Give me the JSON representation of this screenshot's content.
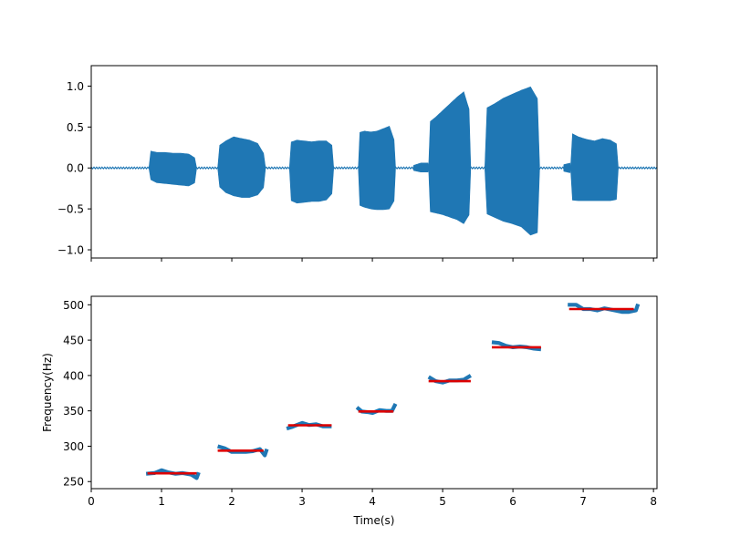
{
  "chart_data": [
    {
      "type": "area",
      "title": "",
      "xlabel": "",
      "ylabel": "",
      "xlim": [
        0,
        8.05
      ],
      "ylim": [
        -1.1,
        1.25
      ],
      "x_ticks": [
        0,
        1,
        2,
        3,
        4,
        5,
        6,
        7,
        8
      ],
      "y_ticks": [
        -1.0,
        -0.5,
        0.0,
        0.5,
        1.0
      ],
      "y_tick_labels": [
        "−1.0",
        "−0.5",
        "0.0",
        "0.5",
        "1.0"
      ],
      "x_tick_labels_visible": false,
      "series": [
        {
          "color": "#1f77b4",
          "noise_amplitude": 0.01,
          "segments": [
            {
              "t_start": 0.82,
              "t_end": 1.5,
              "upper_envelope": [
                0.21,
                0.19,
                0.19,
                0.18,
                0.18,
                0.17,
                0.11
              ],
              "lower_envelope": [
                -0.13,
                -0.18,
                -0.19,
                -0.2,
                -0.21,
                -0.22,
                -0.17
              ]
            },
            {
              "t_start": 1.8,
              "t_end": 2.48,
              "upper_envelope": [
                0.26,
                0.33,
                0.38,
                0.36,
                0.34,
                0.3,
                0.14
              ],
              "lower_envelope": [
                -0.21,
                -0.3,
                -0.34,
                -0.36,
                -0.36,
                -0.33,
                -0.21
              ]
            },
            {
              "t_start": 2.82,
              "t_end": 3.45,
              "upper_envelope": [
                0.31,
                0.34,
                0.33,
                0.32,
                0.33,
                0.33,
                0.26
              ],
              "lower_envelope": [
                -0.39,
                -0.43,
                -0.42,
                -0.41,
                -0.41,
                -0.39,
                -0.29
              ]
            },
            {
              "t_start": 3.8,
              "t_end": 4.33,
              "upper_envelope": [
                0.43,
                0.45,
                0.44,
                0.45,
                0.48,
                0.51,
                0.29
              ],
              "lower_envelope": [
                -0.45,
                -0.48,
                -0.5,
                -0.51,
                -0.51,
                -0.5,
                -0.37
              ]
            },
            {
              "t_start": 4.58,
              "t_end": 4.8,
              "upper_envelope": [
                0.03,
                0.06,
                0.06
              ],
              "lower_envelope": [
                -0.03,
                -0.05,
                -0.05
              ]
            },
            {
              "t_start": 4.8,
              "t_end": 5.4,
              "upper_envelope": [
                0.55,
                0.62,
                0.7,
                0.78,
                0.86,
                0.93,
                0.65
              ],
              "lower_envelope": [
                -0.53,
                -0.55,
                -0.57,
                -0.6,
                -0.63,
                -0.68,
                -0.54
              ]
            },
            {
              "t_start": 5.6,
              "t_end": 6.38,
              "upper_envelope": [
                0.72,
                0.78,
                0.85,
                0.9,
                0.95,
                0.99,
                0.8
              ],
              "lower_envelope": [
                -0.55,
                -0.6,
                -0.65,
                -0.68,
                -0.72,
                -0.82,
                -0.78
              ]
            },
            {
              "t_start": 6.72,
              "t_end": 6.82,
              "upper_envelope": [
                0.04,
                0.06
              ],
              "lower_envelope": [
                -0.04,
                -0.06
              ]
            },
            {
              "t_start": 6.82,
              "t_end": 7.5,
              "upper_envelope": [
                0.43,
                0.38,
                0.35,
                0.33,
                0.36,
                0.34,
                0.28
              ],
              "lower_envelope": [
                -0.39,
                -0.4,
                -0.4,
                -0.4,
                -0.4,
                -0.4,
                -0.38
              ]
            }
          ]
        }
      ]
    },
    {
      "type": "line",
      "title": "",
      "xlabel": "Time(s)",
      "ylabel": "Frequency(Hz)",
      "xlim": [
        0,
        8.05
      ],
      "ylim": [
        240,
        512
      ],
      "x_ticks": [
        0,
        1,
        2,
        3,
        4,
        5,
        6,
        7,
        8
      ],
      "x_tick_labels": [
        "0",
        "1",
        "2",
        "3",
        "4",
        "5",
        "6",
        "7",
        "8"
      ],
      "y_ticks": [
        250,
        300,
        350,
        400,
        450,
        500
      ],
      "y_tick_labels": [
        "250",
        "300",
        "350",
        "400",
        "450",
        "500"
      ],
      "series": [
        {
          "role": "pitch",
          "color": "#1f77b4",
          "segments": [
            {
              "t": [
                0.78,
                0.9,
                1.0,
                1.1,
                1.2,
                1.3,
                1.42,
                1.5,
                1.53
              ],
              "f": [
                261,
                262,
                266,
                263,
                261,
                262,
                260,
                255,
                263
              ]
            },
            {
              "t": [
                1.8,
                1.9,
                2.0,
                2.1,
                2.2,
                2.3,
                2.4,
                2.47,
                2.5
              ],
              "f": [
                300,
                297,
                292,
                292,
                292,
                293,
                296,
                287,
                296
              ]
            },
            {
              "t": [
                2.78,
                2.85,
                2.95,
                3.0,
                3.1,
                3.2,
                3.3,
                3.42
              ],
              "f": [
                325,
                327,
                331,
                333,
                330,
                331,
                328,
                328
              ]
            },
            {
              "t": [
                3.78,
                3.85,
                3.95,
                4.0,
                4.1,
                4.2,
                4.28,
                4.33
              ],
              "f": [
                355,
                349,
                348,
                347,
                351,
                350,
                350,
                360
              ]
            },
            {
              "t": [
                4.8,
                4.9,
                5.0,
                5.1,
                5.2,
                5.3,
                5.4
              ],
              "f": [
                398,
                392,
                390,
                393,
                393,
                394,
                400
              ]
            },
            {
              "t": [
                5.7,
                5.8,
                5.9,
                6.0,
                6.1,
                6.2,
                6.3,
                6.4
              ],
              "f": [
                447,
                446,
                442,
                440,
                441,
                440,
                438,
                437
              ]
            },
            {
              "t": [
                6.78,
                6.9,
                7.0,
                7.1,
                7.2,
                7.3,
                7.4,
                7.55,
                7.65,
                7.75,
                7.78
              ],
              "f": [
                500,
                500,
                494,
                494,
                492,
                495,
                493,
                490,
                490,
                492,
                501
              ]
            }
          ]
        },
        {
          "role": "note-frequency",
          "color": "#dd0000",
          "segments": [
            {
              "t": [
                0.8,
                1.5
              ],
              "f": [
                261.6,
                261.6
              ]
            },
            {
              "t": [
                1.8,
                2.45
              ],
              "f": [
                293.7,
                293.7
              ]
            },
            {
              "t": [
                2.8,
                3.42
              ],
              "f": [
                329.6,
                329.6
              ]
            },
            {
              "t": [
                3.8,
                4.3
              ],
              "f": [
                349.2,
                349.2
              ]
            },
            {
              "t": [
                4.8,
                5.4
              ],
              "f": [
                392.0,
                392.0
              ]
            },
            {
              "t": [
                5.7,
                6.4
              ],
              "f": [
                440.0,
                440.0
              ]
            },
            {
              "t": [
                6.8,
                7.72
              ],
              "f": [
                493.9,
                493.9
              ]
            }
          ]
        }
      ]
    }
  ]
}
